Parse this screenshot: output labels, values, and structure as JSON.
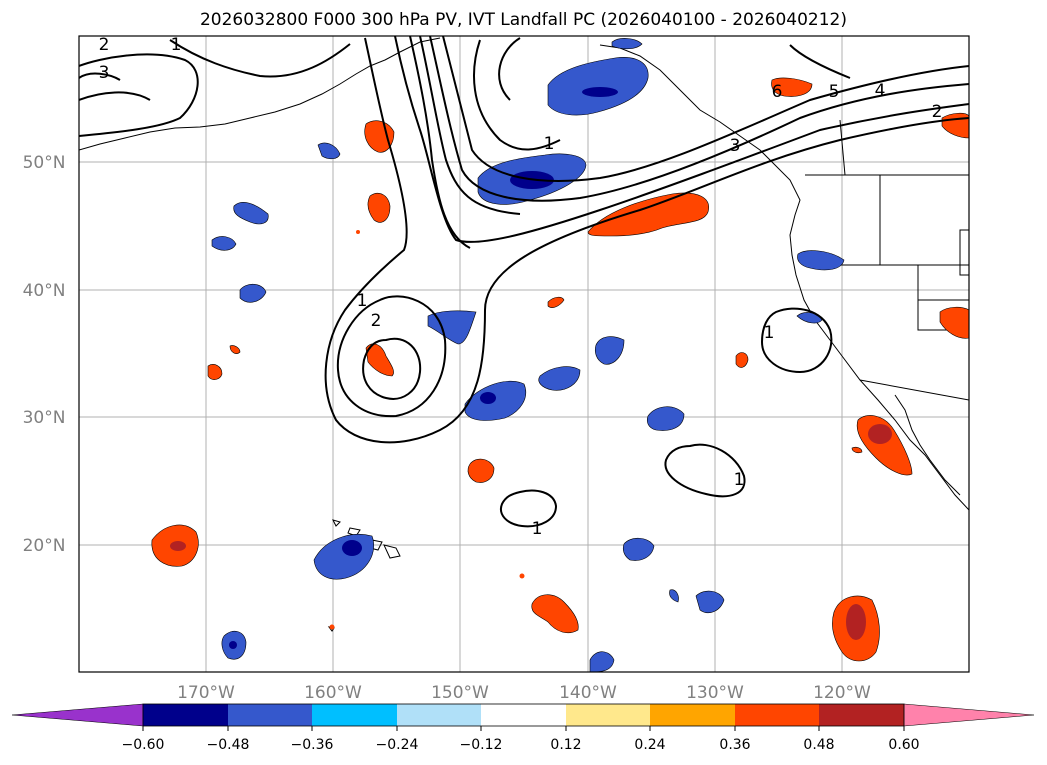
{
  "title": "2026032800 F000 300 hPa PV, IVT Landfall PC (2026040100 - 2026040212)",
  "map": {
    "lat_labels": [
      "50°N",
      "40°N",
      "30°N",
      "20°N"
    ],
    "lon_labels": [
      "170°W",
      "160°W",
      "150°W",
      "140°W",
      "130°W",
      "120°W"
    ],
    "contour_labels": [
      "2",
      "3",
      "1",
      "1",
      "3",
      "6",
      "5",
      "4",
      "2",
      "1",
      "2",
      "1",
      "1",
      "1"
    ]
  },
  "colorbar": {
    "tick_labels": [
      "−0.60",
      "−0.48",
      "−0.36",
      "−0.24",
      "−0.12",
      "0.12",
      "0.24",
      "0.36",
      "0.48",
      "0.60"
    ],
    "colors": [
      "#9932cc",
      "#00008b",
      "#3558cc",
      "#00bfff",
      "#b0e0f8",
      "#ffffff",
      "#ffe88c",
      "#ffa500",
      "#ff4500",
      "#b22222",
      "#ff82ab"
    ]
  },
  "colors": {
    "text": "#000000",
    "axis_label": "#808080",
    "grid": "#b0b0b0",
    "contour": "#000000"
  }
}
